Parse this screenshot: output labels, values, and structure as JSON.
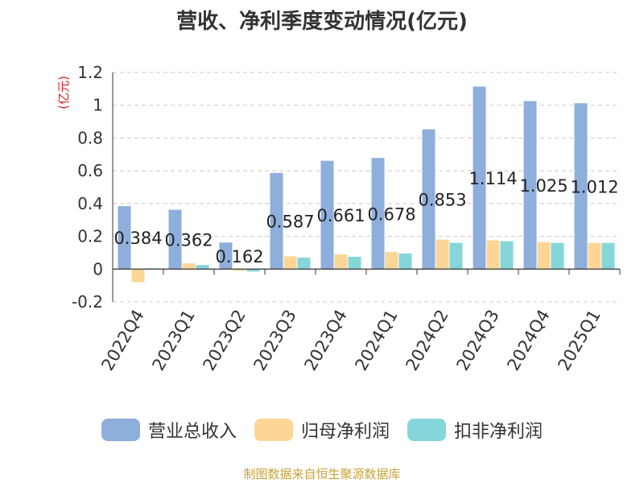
{
  "title": "营收、净利季度变动情况(亿元)",
  "source": "制图数据来自恒生聚源数据库",
  "chart_data": {
    "type": "bar",
    "title": "营收、净利季度变动情况(亿元)",
    "ylabel": "(亿元)",
    "ylim": [
      -0.2,
      1.2
    ],
    "yticks": [
      -0.2,
      0,
      0.2,
      0.4,
      0.6,
      0.8,
      1,
      1.2
    ],
    "ytick_labels": [
      "-0.2",
      "0",
      "0.2",
      "0.4",
      "0.6",
      "0.8",
      "1",
      "1.2"
    ],
    "grid": true,
    "legend_position": "bottom",
    "categories": [
      "2022Q4",
      "2023Q1",
      "2023Q2",
      "2023Q3",
      "2023Q4",
      "2024Q1",
      "2024Q2",
      "2024Q3",
      "2024Q4",
      "2025Q1"
    ],
    "series": [
      {
        "name": "营业总收入",
        "color": "#8eaedb",
        "values": [
          0.384,
          0.362,
          0.162,
          0.587,
          0.661,
          0.678,
          0.853,
          1.114,
          1.025,
          1.012
        ]
      },
      {
        "name": "归母净利润",
        "color": "#fdd697",
        "values": [
          -0.08,
          0.035,
          -0.01,
          0.078,
          0.09,
          0.105,
          0.18,
          0.175,
          0.165,
          0.16
        ]
      },
      {
        "name": "扣非净利润",
        "color": "#85d6d8",
        "values": [
          0.005,
          0.025,
          -0.015,
          0.07,
          0.075,
          0.095,
          0.16,
          0.17,
          0.16,
          0.16
        ]
      }
    ],
    "data_labels": [
      "0.384",
      "0.362",
      "0.162",
      "0.587",
      "0.661",
      "0.678",
      "0.853",
      "1.114",
      "1.025",
      "1.012"
    ]
  }
}
